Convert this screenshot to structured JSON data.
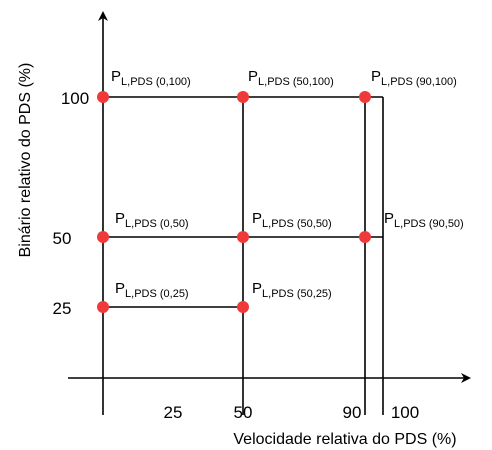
{
  "axes": {
    "x_label": "Velocidade relativa do PDS (%)",
    "y_label": "Binário relativo do PDS (%)",
    "x_ticks": [
      "25",
      "50",
      "90",
      "100"
    ],
    "y_ticks": [
      "100",
      "50",
      "25"
    ]
  },
  "points": [
    {
      "id": "p-0-100",
      "main": "P",
      "sub": "L,PDS (0,100)"
    },
    {
      "id": "p-50-100",
      "main": "P",
      "sub": "L,PDS (50,100)"
    },
    {
      "id": "p-90-100",
      "main": "P",
      "sub": "L,PDS (90,100)"
    },
    {
      "id": "p-0-50",
      "main": "P",
      "sub": "L,PDS (0,50)"
    },
    {
      "id": "p-50-50",
      "main": "P",
      "sub": "L,PDS (50,50)"
    },
    {
      "id": "p-90-50",
      "main": "P",
      "sub": "L,PDS (90,50)"
    },
    {
      "id": "p-0-25",
      "main": "P",
      "sub": "L,PDS (0,25)"
    },
    {
      "id": "p-50-25",
      "main": "P",
      "sub": "L,PDS (50,25)"
    }
  ],
  "colors": {
    "point": "#f03a3a",
    "line": "#000000"
  }
}
